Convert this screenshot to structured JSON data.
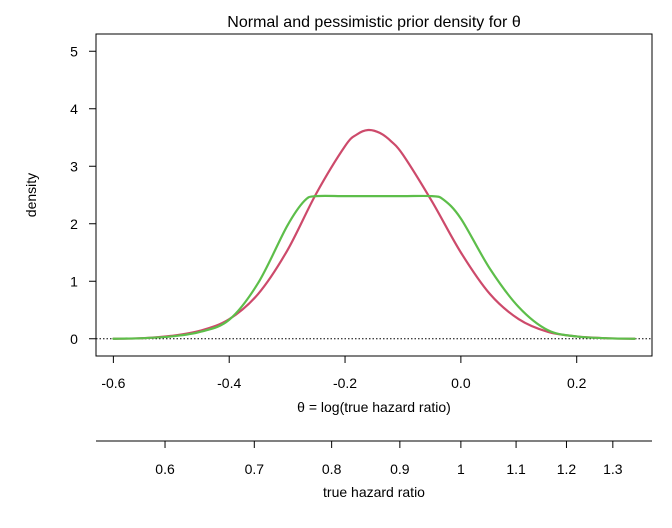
{
  "chart_data": {
    "type": "line",
    "title": "Normal and pessimistic prior density for θ",
    "xlabel": "θ = log(true hazard ratio)",
    "ylabel": "density",
    "secondary_xlabel": "true hazard ratio",
    "xlim": [
      -0.63,
      0.33
    ],
    "ylim": [
      -0.3,
      5.3
    ],
    "x_ticks": [
      -0.6,
      -0.4,
      -0.2,
      0.0,
      0.2
    ],
    "x_tick_labels": [
      "-0.6",
      "-0.4",
      "-0.2",
      "0.0",
      "0.2"
    ],
    "y_ticks": [
      0,
      1,
      2,
      3,
      4,
      5
    ],
    "y_tick_labels": [
      "0",
      "1",
      "2",
      "3",
      "4",
      "5"
    ],
    "secondary_x_ticks": [
      0.6,
      0.7,
      0.8,
      0.9,
      1.0,
      1.1,
      1.2,
      1.3
    ],
    "secondary_x_tick_labels": [
      "0.6",
      "0.7",
      "0.8",
      "0.9",
      "1",
      "1.1",
      "1.2",
      "1.3"
    ],
    "reference_line_y": 0,
    "grid": false,
    "series": [
      {
        "color": "#CD4A6B",
        "x": [
          -0.6,
          -0.55,
          -0.5,
          -0.45,
          -0.4,
          -0.35,
          -0.3,
          -0.25,
          -0.2,
          -0.18,
          -0.16,
          -0.14,
          -0.12,
          -0.1,
          -0.05,
          0.0,
          0.05,
          0.1,
          0.15,
          0.2,
          0.25,
          0.3
        ],
        "y": [
          0.0,
          0.01,
          0.05,
          0.14,
          0.34,
          0.78,
          1.53,
          2.52,
          3.35,
          3.55,
          3.63,
          3.58,
          3.43,
          3.2,
          2.39,
          1.5,
          0.78,
          0.34,
          0.12,
          0.04,
          0.01,
          0.0
        ]
      },
      {
        "color": "#5DBE4A",
        "x": [
          -0.6,
          -0.55,
          -0.5,
          -0.45,
          -0.4,
          -0.35,
          -0.3,
          -0.27,
          -0.25,
          -0.2,
          -0.15,
          -0.1,
          -0.05,
          -0.03,
          0.0,
          0.05,
          0.1,
          0.15,
          0.2,
          0.25,
          0.3
        ],
        "y": [
          0.0,
          0.01,
          0.04,
          0.12,
          0.33,
          0.97,
          1.96,
          2.4,
          2.48,
          2.48,
          2.48,
          2.48,
          2.48,
          2.42,
          2.09,
          1.22,
          0.55,
          0.15,
          0.04,
          0.01,
          0.0
        ]
      }
    ]
  }
}
